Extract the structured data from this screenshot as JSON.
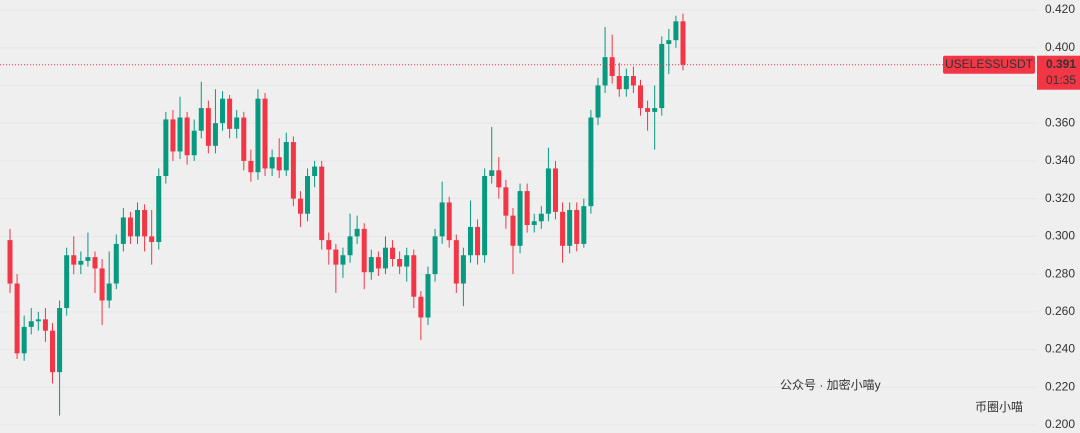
{
  "chart_data": {
    "type": "candlestick",
    "symbol": "USELESSUSDT",
    "last_price": 0.391,
    "countdown": "01:35",
    "up_color": "#089981",
    "down_color": "#f23645",
    "open": [
      0.298,
      0.275,
      0.238,
      0.252,
      0.255,
      0.256,
      0.25,
      0.228,
      0.262,
      0.29,
      0.285,
      0.287,
      0.289,
      0.283,
      0.266,
      0.275,
      0.296,
      0.31,
      0.3,
      0.314,
      0.3,
      0.297,
      0.332,
      0.362,
      0.345,
      0.363,
      0.343,
      0.356,
      0.368,
      0.348,
      0.36,
      0.373,
      0.357,
      0.363,
      0.34,
      0.334,
      0.373,
      0.336,
      0.342,
      0.335,
      0.35,
      0.32,
      0.312,
      0.332,
      0.337,
      0.298,
      0.293,
      0.285,
      0.29,
      0.3,
      0.304,
      0.281,
      0.289,
      0.283,
      0.294,
      0.288,
      0.284,
      0.29,
      0.268,
      0.257,
      0.28,
      0.3,
      0.318,
      0.298,
      0.275,
      0.29,
      0.305,
      0.29,
      0.332,
      0.335,
      0.326,
      0.311,
      0.295,
      0.324,
      0.306,
      0.308,
      0.312,
      0.336,
      0.313,
      0.295,
      0.314,
      0.296,
      0.316,
      0.363,
      0.38,
      0.395,
      0.385,
      0.378,
      0.385,
      0.38,
      0.368,
      0.366,
      0.368,
      0.402,
      0.404,
      0.414
    ],
    "high": [
      0.304,
      0.28,
      0.258,
      0.262,
      0.26,
      0.262,
      0.254,
      0.266,
      0.294,
      0.3,
      0.292,
      0.302,
      0.292,
      0.288,
      0.292,
      0.301,
      0.315,
      0.313,
      0.318,
      0.317,
      0.314,
      0.336,
      0.366,
      0.367,
      0.374,
      0.366,
      0.362,
      0.382,
      0.372,
      0.378,
      0.377,
      0.375,
      0.367,
      0.366,
      0.346,
      0.378,
      0.376,
      0.346,
      0.352,
      0.355,
      0.353,
      0.324,
      0.336,
      0.34,
      0.34,
      0.302,
      0.296,
      0.294,
      0.312,
      0.311,
      0.307,
      0.293,
      0.292,
      0.3,
      0.298,
      0.292,
      0.294,
      0.293,
      0.271,
      0.284,
      0.304,
      0.329,
      0.321,
      0.301,
      0.294,
      0.319,
      0.309,
      0.336,
      0.358,
      0.342,
      0.33,
      0.315,
      0.328,
      0.328,
      0.312,
      0.316,
      0.347,
      0.34,
      0.318,
      0.318,
      0.318,
      0.32,
      0.367,
      0.384,
      0.411,
      0.407,
      0.392,
      0.389,
      0.39,
      0.383,
      0.372,
      0.38,
      0.406,
      0.41,
      0.417,
      0.418
    ],
    "low": [
      0.27,
      0.235,
      0.234,
      0.248,
      0.25,
      0.244,
      0.222,
      0.205,
      0.258,
      0.28,
      0.28,
      0.284,
      0.27,
      0.253,
      0.262,
      0.272,
      0.292,
      0.296,
      0.296,
      0.292,
      0.285,
      0.293,
      0.328,
      0.34,
      0.341,
      0.338,
      0.34,
      0.352,
      0.344,
      0.344,
      0.356,
      0.352,
      0.352,
      0.335,
      0.329,
      0.33,
      0.332,
      0.332,
      0.331,
      0.332,
      0.316,
      0.305,
      0.308,
      0.326,
      0.293,
      0.285,
      0.27,
      0.278,
      0.286,
      0.296,
      0.272,
      0.277,
      0.279,
      0.28,
      0.284,
      0.28,
      0.276,
      0.262,
      0.245,
      0.253,
      0.276,
      0.296,
      0.294,
      0.27,
      0.263,
      0.286,
      0.285,
      0.286,
      0.328,
      0.32,
      0.304,
      0.28,
      0.291,
      0.302,
      0.302,
      0.304,
      0.308,
      0.309,
      0.286,
      0.291,
      0.292,
      0.294,
      0.312,
      0.359,
      0.376,
      0.381,
      0.374,
      0.374,
      0.376,
      0.364,
      0.356,
      0.346,
      0.364,
      0.386,
      0.4,
      0.388
    ],
    "close": [
      0.275,
      0.238,
      0.252,
      0.255,
      0.256,
      0.25,
      0.228,
      0.262,
      0.29,
      0.285,
      0.287,
      0.289,
      0.283,
      0.266,
      0.275,
      0.296,
      0.31,
      0.3,
      0.314,
      0.3,
      0.297,
      0.332,
      0.362,
      0.345,
      0.363,
      0.343,
      0.356,
      0.368,
      0.348,
      0.36,
      0.373,
      0.357,
      0.363,
      0.34,
      0.334,
      0.373,
      0.336,
      0.342,
      0.335,
      0.35,
      0.32,
      0.312,
      0.332,
      0.337,
      0.298,
      0.293,
      0.285,
      0.29,
      0.3,
      0.304,
      0.281,
      0.289,
      0.283,
      0.294,
      0.288,
      0.284,
      0.29,
      0.268,
      0.257,
      0.28,
      0.3,
      0.318,
      0.298,
      0.275,
      0.29,
      0.305,
      0.29,
      0.332,
      0.335,
      0.326,
      0.311,
      0.295,
      0.324,
      0.306,
      0.308,
      0.312,
      0.336,
      0.313,
      0.295,
      0.314,
      0.296,
      0.316,
      0.363,
      0.38,
      0.395,
      0.385,
      0.378,
      0.385,
      0.38,
      0.368,
      0.366,
      0.368,
      0.402,
      0.404,
      0.414,
      0.391
    ],
    "ylim": [
      0.2,
      0.42
    ],
    "yticks": [
      {
        "value": 0.2,
        "label": "0.200"
      },
      {
        "value": 0.22,
        "label": "0.220"
      },
      {
        "value": 0.24,
        "label": "0.240"
      },
      {
        "value": 0.26,
        "label": "0.260"
      },
      {
        "value": 0.28,
        "label": "0.280"
      },
      {
        "value": 0.3,
        "label": "0.300"
      },
      {
        "value": 0.32,
        "label": "0.320"
      },
      {
        "value": 0.34,
        "label": "0.340"
      },
      {
        "value": 0.36,
        "label": "0.360"
      },
      {
        "value": 0.38,
        "label": "0.380"
      },
      {
        "value": 0.4,
        "label": "0.400"
      },
      {
        "value": 0.42,
        "label": "0.420"
      }
    ],
    "grid": true,
    "watermark": [
      "公众号 · 加密小喵y",
      "币圈小喵"
    ]
  }
}
